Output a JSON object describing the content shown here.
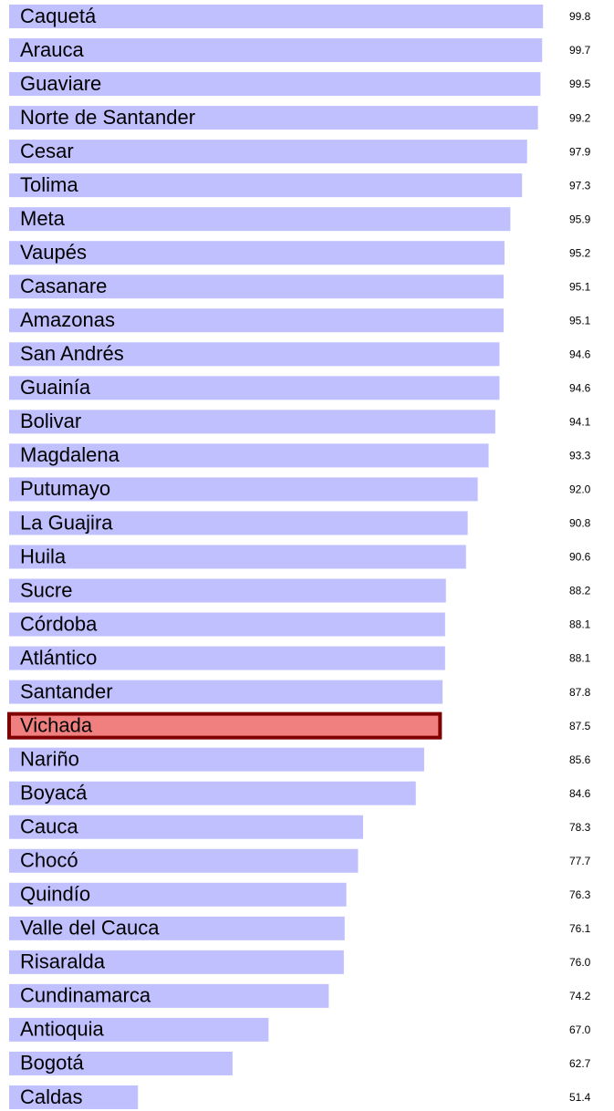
{
  "chart_data": {
    "type": "barh",
    "categories": [
      "Caquetá",
      "Arauca",
      "Guaviare",
      "Norte de Santander",
      "Cesar",
      "Tolima",
      "Meta",
      "Vaupés",
      "Casanare",
      "Amazonas",
      "San Andrés",
      "Guainía",
      "Bolivar",
      "Magdalena",
      "Putumayo",
      "La Guajira",
      "Huila",
      "Sucre",
      "Córdoba",
      "Atlántico",
      "Santander",
      "Vichada",
      "Nariño",
      "Boyacá",
      "Cauca",
      "Chocó",
      "Quindío",
      "Valle del Cauca",
      "Risaralda",
      "Cundinamarca",
      "Antioquia",
      "Bogotá",
      "Caldas"
    ],
    "values": [
      99.8,
      99.7,
      99.5,
      99.2,
      97.9,
      97.3,
      95.9,
      95.2,
      95.1,
      95.1,
      94.6,
      94.6,
      94.1,
      93.3,
      92.0,
      90.8,
      90.6,
      88.2,
      88.1,
      88.1,
      87.8,
      87.5,
      85.6,
      84.6,
      78.3,
      77.7,
      76.3,
      76.1,
      76.0,
      74.2,
      67.0,
      62.7,
      51.4
    ],
    "value_labels": [
      "99.8",
      "99.7",
      "99.5",
      "99.2",
      "97.9",
      "97.3",
      "95.9",
      "95.2",
      "95.1",
      "95.1",
      "94.6",
      "94.6",
      "94.1",
      "93.3",
      "92.0",
      "90.8",
      "90.6",
      "88.2",
      "88.1",
      "88.1",
      "87.8",
      "87.5",
      "85.6",
      "84.6",
      "78.3",
      "77.7",
      "76.3",
      "76.1",
      "76.0",
      "74.2",
      "67.0",
      "62.7",
      "51.4"
    ],
    "colors": [
      "#c0c0ff",
      "#c0c0ff",
      "#c0c0ff",
      "#c0c0ff",
      "#c0c0ff",
      "#c0c0ff",
      "#c0c0ff",
      "#c0c0ff",
      "#c0c0ff",
      "#c0c0ff",
      "#c0c0ff",
      "#c0c0ff",
      "#c0c0ff",
      "#c0c0ff",
      "#c0c0ff",
      "#c0c0ff",
      "#c0c0ff",
      "#c0c0ff",
      "#c0c0ff",
      "#c0c0ff",
      "#c0c0ff",
      "#f08080",
      "#c0c0ff",
      "#c0c0ff",
      "#c0c0ff",
      "#c0c0ff",
      "#c0c0ff",
      "#c0c0ff",
      "#c0c0ff",
      "#c0c0ff",
      "#c0c0ff",
      "#c0c0ff",
      "#c0c0ff"
    ],
    "edgecolors": [
      null,
      null,
      null,
      null,
      null,
      null,
      null,
      null,
      null,
      null,
      null,
      null,
      null,
      null,
      null,
      null,
      null,
      null,
      null,
      null,
      null,
      "#800000",
      null,
      null,
      null,
      null,
      null,
      null,
      null,
      null,
      null,
      null,
      null
    ],
    "xlim": [
      36,
      100
    ]
  }
}
